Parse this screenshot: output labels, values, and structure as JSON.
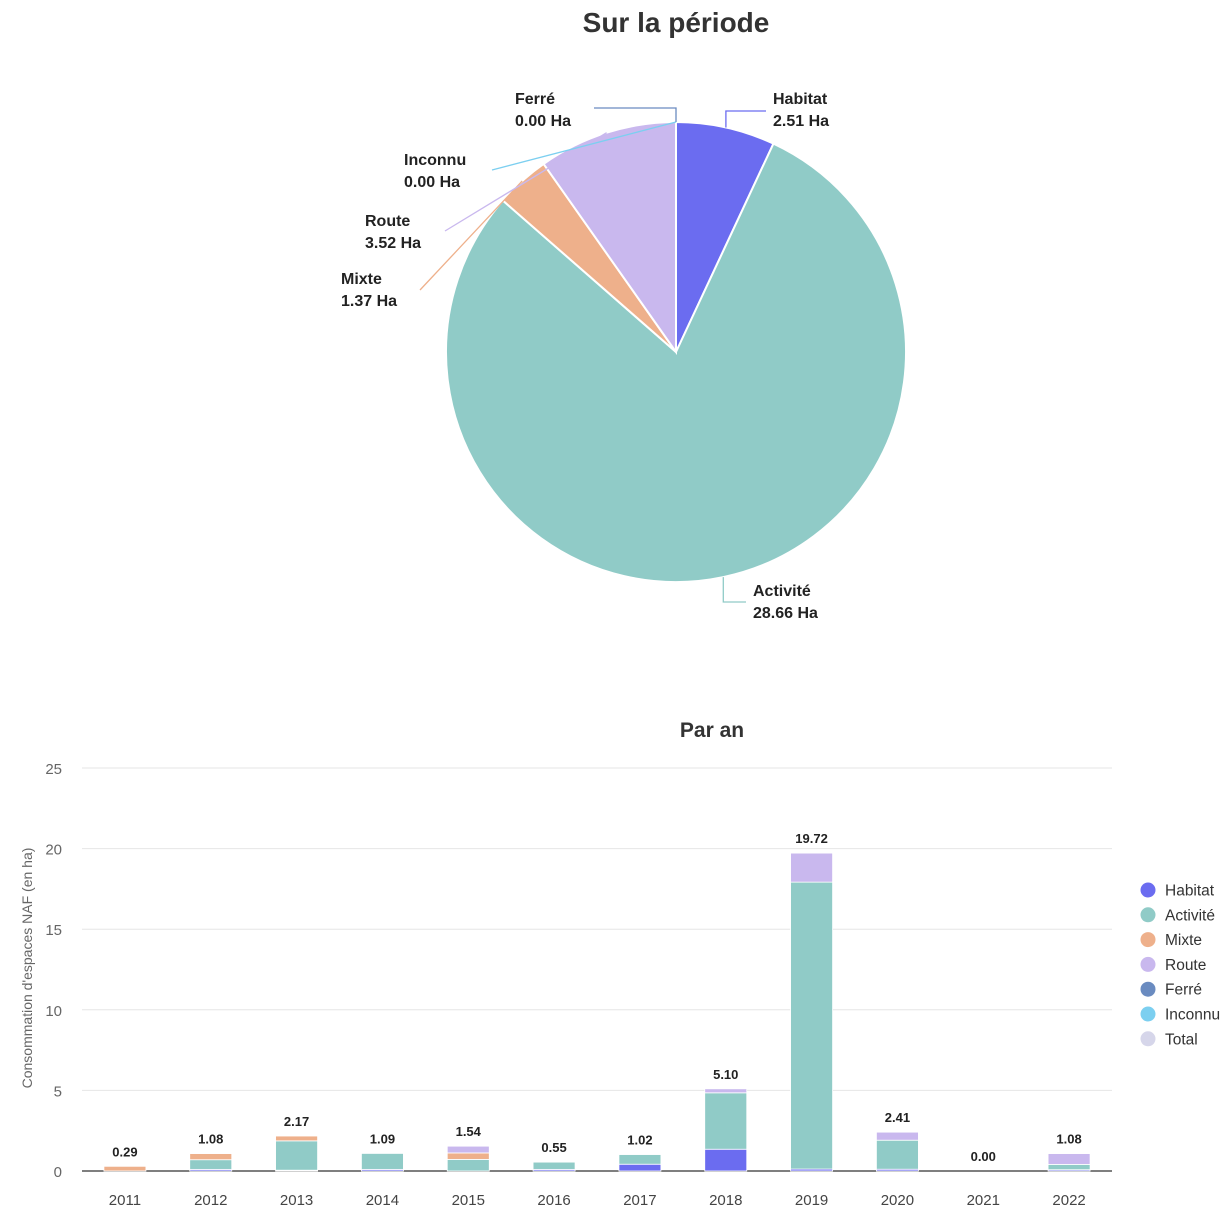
{
  "chart_data": [
    {
      "type": "pie",
      "title": "Sur la période",
      "unit": "Ha",
      "slices": [
        {
          "name": "Habitat",
          "value": 2.51,
          "label": "2.51 Ha",
          "color": "#6b6cf0"
        },
        {
          "name": "Activité",
          "value": 28.66,
          "label": "28.66 Ha",
          "color": "#90cbc7"
        },
        {
          "name": "Mixte",
          "value": 1.37,
          "label": "1.37 Ha",
          "color": "#eeb08b"
        },
        {
          "name": "Route",
          "value": 3.52,
          "label": "3.52 Ha",
          "color": "#c9b8ee"
        },
        {
          "name": "Inconnu",
          "value": 0.0,
          "label": "0.00 Ha",
          "color": "#7ccff0"
        },
        {
          "name": "Ferré",
          "value": 0.0,
          "label": "0.00 Ha",
          "color": "#6a8bc0"
        }
      ]
    },
    {
      "type": "bar",
      "stacked": true,
      "title": "Par an",
      "xlabel": "",
      "ylabel": "Consommation d'espaces NAF (en ha)",
      "ylim": [
        0,
        25
      ],
      "yticks": [
        0,
        5,
        10,
        15,
        20,
        25
      ],
      "grid": true,
      "legend_position": "right",
      "categories": [
        "2011",
        "2012",
        "2013",
        "2014",
        "2015",
        "2016",
        "2017",
        "2018",
        "2019",
        "2020",
        "2021",
        "2022"
      ],
      "series": [
        {
          "name": "Habitat",
          "color": "#6b6cf0",
          "values": [
            0.0,
            0.1,
            0.05,
            0.1,
            0.0,
            0.1,
            0.42,
            1.35,
            0.12,
            0.11,
            0.0,
            0.08
          ]
        },
        {
          "name": "Activité",
          "color": "#90cbc7",
          "values": [
            0.0,
            0.6,
            1.82,
            0.99,
            0.72,
            0.45,
            0.6,
            3.5,
            17.8,
            1.8,
            0.0,
            0.33
          ]
        },
        {
          "name": "Mixte",
          "color": "#eeb08b",
          "values": [
            0.29,
            0.38,
            0.3,
            0.0,
            0.4,
            0.0,
            0.0,
            0.0,
            0.0,
            0.0,
            0.0,
            0.0
          ]
        },
        {
          "name": "Route",
          "color": "#c9b8ee",
          "values": [
            0.0,
            0.0,
            0.0,
            0.0,
            0.42,
            0.0,
            0.0,
            0.25,
            1.8,
            0.5,
            0.0,
            0.67
          ]
        },
        {
          "name": "Ferré",
          "color": "#6a8bc0",
          "values": [
            0,
            0,
            0,
            0,
            0,
            0,
            0,
            0,
            0,
            0,
            0,
            0
          ]
        },
        {
          "name": "Inconnu",
          "color": "#7ccff0",
          "values": [
            0,
            0,
            0,
            0,
            0,
            0,
            0,
            0,
            0,
            0,
            0,
            0
          ]
        },
        {
          "name": "Total",
          "color": "#d6d6ea",
          "values": [
            0,
            0,
            0,
            0,
            0,
            0,
            0,
            0,
            0,
            0,
            0,
            0
          ]
        }
      ],
      "totals": [
        0.29,
        1.08,
        2.17,
        1.09,
        1.54,
        0.55,
        1.02,
        5.1,
        19.72,
        2.41,
        0.0,
        1.08
      ],
      "total_labels": [
        "0.29",
        "1.08",
        "2.17",
        "1.09",
        "1.54",
        "0.55",
        "1.02",
        "5.10",
        "19.72",
        "2.41",
        "0.00",
        "1.08"
      ]
    }
  ]
}
